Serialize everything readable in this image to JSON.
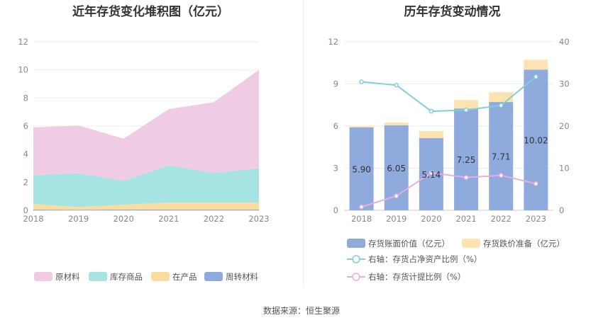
{
  "left_title": "近年存货变化堆积图（亿元）",
  "right_title": "历年存货变动情况",
  "source": "数据来源：恒生聚源",
  "chart_data": [
    {
      "type": "area",
      "stacked": true,
      "categories": [
        "2018",
        "2019",
        "2020",
        "2021",
        "2022",
        "2023"
      ],
      "ylim": [
        0,
        12
      ],
      "yticks": [
        0,
        2,
        4,
        6,
        8,
        10,
        12
      ],
      "grid": true,
      "legend_position": "bottom",
      "series": [
        {
          "name": "周转材料",
          "color": "#8faadc",
          "values": [
            0.05,
            0.04,
            0.05,
            0.05,
            0.05,
            0.05
          ]
        },
        {
          "name": "在产品",
          "color": "#fbdca0",
          "values": [
            0.4,
            0.2,
            0.35,
            0.5,
            0.5,
            0.5
          ]
        },
        {
          "name": "库存商品",
          "color": "#a6e3e3",
          "values": [
            2.05,
            2.4,
            1.7,
            2.65,
            2.1,
            2.45
          ]
        },
        {
          "name": "原材料",
          "color": "#efcce4",
          "values": [
            3.4,
            3.4,
            3.0,
            4.0,
            5.05,
            7.0
          ]
        }
      ],
      "legend_order": [
        "原材料",
        "库存商品",
        "在产品",
        "周转材料"
      ]
    },
    {
      "type": "bar",
      "stacked": true,
      "categories": [
        "2018",
        "2019",
        "2020",
        "2021",
        "2022",
        "2023"
      ],
      "ylim": [
        0,
        12
      ],
      "yticks": [
        0,
        3,
        6,
        9,
        12
      ],
      "y2lim": [
        0,
        40
      ],
      "y2ticks": [
        0,
        10,
        20,
        30,
        40
      ],
      "grid": true,
      "legend_position": "bottom",
      "series": [
        {
          "name": "存货账面价值（亿元）",
          "color": "#8faadc",
          "axis": "left",
          "kind": "bar",
          "values": [
            5.9,
            6.05,
            5.14,
            7.25,
            7.71,
            10.02
          ],
          "labels": [
            "5.90",
            "6.05",
            "5.14",
            "7.25",
            "7.71",
            "10.02"
          ]
        },
        {
          "name": "存货跌价准备（亿元）",
          "color": "#fde3b2",
          "axis": "left",
          "kind": "bar",
          "values": [
            0.1,
            0.2,
            0.5,
            0.6,
            0.7,
            0.7
          ]
        },
        {
          "name": "右轴：存货占净资产比例（%）",
          "color": "#7fd1d6",
          "axis": "right",
          "kind": "line",
          "values": [
            30.5,
            29.7,
            23.5,
            23.8,
            24.9,
            31.7
          ]
        },
        {
          "name": "右轴：存货计提比例（%）",
          "color": "#e6aee0",
          "axis": "right",
          "kind": "line",
          "values": [
            0.8,
            3.4,
            8.9,
            7.8,
            8.3,
            6.3
          ]
        }
      ]
    }
  ]
}
